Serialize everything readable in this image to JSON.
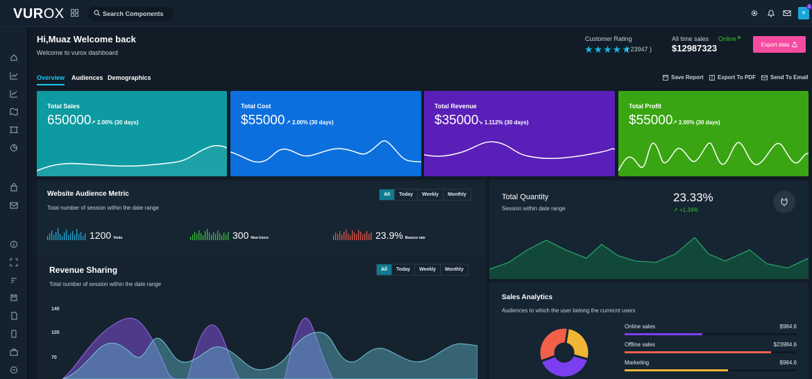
{
  "app": {
    "logo_bold": "VUR",
    "logo_light": "OX"
  },
  "search": {
    "placeholder": "Search Components"
  },
  "avatar": {
    "initial": "s",
    "badge": "2"
  },
  "header": {
    "greeting": "Hi,Muaz Welcome back",
    "subtitle": "Welcome to vurox dashboard",
    "rating_label": "Customer Rating",
    "stars": "★★★★★",
    "rating_count": "( 23947 )",
    "sales_label": "All time sales",
    "online_label": "Online",
    "sales_value": "$12987323",
    "export_label": "Export data"
  },
  "tabs": [
    "Overview",
    "Audiences",
    "Demographics"
  ],
  "actions": {
    "save": "Save Report",
    "pdf": "Export To PDF",
    "email": "Send To Email"
  },
  "cards": [
    {
      "title": "Total Sales",
      "value": "650000",
      "trend": "2.00% (30 days)",
      "color": "#0d9aa1"
    },
    {
      "title": "Total Cost",
      "value": "$55000",
      "trend": "2.00% (30 days)",
      "color": "#0c6fde"
    },
    {
      "title": "Total Revenue",
      "value": "$35000",
      "trend": "1.112% (30 days)",
      "color": "#5a1fb8"
    },
    {
      "title": "Total Profit",
      "value": "$55000",
      "trend": "2.00% (30 days)",
      "color": "#39a512"
    }
  ],
  "audience": {
    "title": "Website Audience Metric",
    "subtitle": "Total number of session within the date range",
    "filters": [
      "All",
      "Today",
      "Weekly",
      "Monthly"
    ],
    "metrics": [
      {
        "value": "1200",
        "label": "Visits",
        "color": "#23a8d6"
      },
      {
        "value": "300",
        "label": "New Users",
        "color": "#3cbd38"
      },
      {
        "value": "23.9%",
        "label": "Bounce rate",
        "color": "#e0584a"
      }
    ]
  },
  "revenue": {
    "title": "Revenue Sharing",
    "subtitle": "Total number of session within the date range",
    "filters": [
      "All",
      "Today",
      "Weekly",
      "Monthly"
    ],
    "yticks": [
      "140",
      "105",
      "70"
    ]
  },
  "quantity": {
    "title": "Total Quantity",
    "subtitle": "Session within date range",
    "value": "23.33%",
    "trend": "+1.34%"
  },
  "sales_analytics": {
    "title": "Sales Analytics",
    "subtitle": "Audiences to which the user belong the currecnt users",
    "rows": [
      {
        "name": "Online sales",
        "value": "$984.6",
        "color": "#7b3ff0",
        "fill": 0.45
      },
      {
        "name": "Offline sales",
        "value": "$23984.6",
        "color": "#f2604a",
        "fill": 0.85
      },
      {
        "name": "Marketing",
        "value": "$984.6",
        "color": "#f0b537",
        "fill": 0.6
      }
    ],
    "donut": [
      {
        "color": "#f0b537",
        "share": 0.27
      },
      {
        "color": "#7b3ff0",
        "share": 0.4
      },
      {
        "color": "#f2604a",
        "share": 0.33
      }
    ]
  }
}
